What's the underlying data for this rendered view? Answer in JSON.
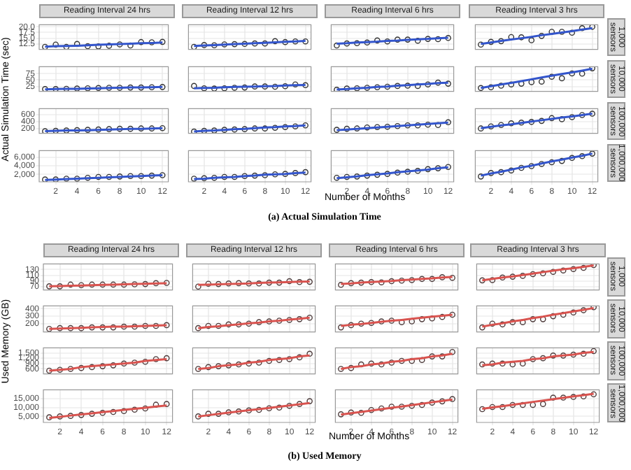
{
  "chart_data": [
    {
      "type": "scatter",
      "title": "Reading Interval 24 hrs",
      "ylabel": "Actual Simulation Time (sec)",
      "x": [
        1,
        2,
        3,
        4,
        5,
        6,
        7,
        8,
        9,
        10,
        11,
        12
      ],
      "series": [
        {
          "color": "#333333",
          "marker": "circle",
          "values": [
            11.2,
            12.2,
            11.2,
            12.5,
            11.5,
            11.4,
            11.7,
            12.3,
            11.8,
            13.3,
            13.2,
            13.4
          ]
        },
        {
          "type": "line",
          "marker": "none",
          "color": "#3355cc",
          "values": [
            11.3,
            11.5,
            11.6,
            11.7,
            11.9,
            12.1,
            12.3,
            12.4,
            12.6,
            12.8,
            12.9,
            13.1
          ]
        }
      ],
      "xlim": [
        0.45,
        12.55
      ],
      "xticks": [
        2,
        4,
        6,
        8,
        10,
        12
      ],
      "ylim": [
        10.1,
        20.9
      ],
      "yticks": [
        {
          "value": 12.5,
          "label": "12.5"
        },
        {
          "value": 15,
          "label": "15.0"
        },
        {
          "value": 17.5,
          "label": "17.5"
        },
        {
          "value": 20,
          "label": "20.0"
        }
      ],
      "tick_labels": "y",
      "grid": true
    },
    {
      "type": "scatter",
      "title": "Reading Interval 12 hrs",
      "x": [
        1,
        2,
        3,
        4,
        5,
        6,
        7,
        8,
        9,
        10,
        11,
        12
      ],
      "series": [
        {
          "color": "#333333",
          "marker": "circle",
          "values": [
            11.2,
            12.0,
            11.9,
            12.3,
            12.4,
            12.5,
            12.7,
            12.7,
            13.7,
            13.3,
            13.6,
            13.6
          ]
        },
        {
          "type": "line",
          "marker": "none",
          "color": "#3355cc",
          "values": [
            11.6,
            11.8,
            12.0,
            12.2,
            12.4,
            12.6,
            12.8,
            13.0,
            13.2,
            13.4,
            13.6,
            13.8
          ]
        }
      ],
      "xlim": [
        0.45,
        12.55
      ],
      "xticks": [
        2,
        4,
        6,
        8,
        10,
        12
      ],
      "ylim": [
        10.1,
        20.9
      ],
      "yticks": [
        12.5,
        15,
        17.5,
        20
      ],
      "tick_labels": false,
      "grid": true
    },
    {
      "type": "scatter",
      "title": "Reading Interval 6 hrs",
      "x": [
        1,
        2,
        3,
        4,
        5,
        6,
        7,
        8,
        9,
        10,
        11,
        12
      ],
      "series": [
        {
          "color": "#333333",
          "marker": "circle",
          "values": [
            11.8,
            12.7,
            12.8,
            13.1,
            14.0,
            13.6,
            14.4,
            14.4,
            13.9,
            14.7,
            14.6,
            15.1
          ]
        },
        {
          "type": "line",
          "marker": "none",
          "color": "#3355cc",
          "values": [
            12.6,
            12.8,
            13.1,
            13.3,
            13.5,
            13.8,
            14.0,
            14.3,
            14.5,
            14.7,
            15.0,
            15.2
          ]
        }
      ],
      "xlim": [
        0.45,
        12.55
      ],
      "xticks": [
        2,
        4,
        6,
        8,
        10,
        12
      ],
      "ylim": [
        10.1,
        20.9
      ],
      "yticks": [
        12.5,
        15,
        17.5,
        20
      ],
      "tick_labels": false,
      "grid": true
    },
    {
      "type": "scatter",
      "title": "Reading Interval 3 hrs",
      "y2label": "1,000 sensors",
      "x": [
        1,
        2,
        3,
        4,
        5,
        6,
        7,
        8,
        9,
        10,
        11,
        12
      ],
      "series": [
        {
          "color": "#333333",
          "marker": "circle",
          "values": [
            12.2,
            13.4,
            13.7,
            15.5,
            15.4,
            14.1,
            16.0,
            17.8,
            17.8,
            17.4,
            19.4,
            20.0
          ]
        },
        {
          "type": "line",
          "marker": "none",
          "color": "#3355cc",
          "values": [
            12.5,
            13.1,
            13.8,
            14.4,
            15.0,
            15.6,
            16.3,
            16.9,
            17.5,
            18.1,
            18.8,
            19.4
          ]
        }
      ],
      "xlim": [
        0.45,
        12.55
      ],
      "xticks": [
        2,
        4,
        6,
        8,
        10,
        12
      ],
      "ylim": [
        10.1,
        20.9
      ],
      "yticks": [
        12.5,
        15,
        17.5,
        20
      ],
      "tick_labels": false,
      "grid": true
    },
    {
      "type": "scatter",
      "x": [
        1,
        2,
        3,
        4,
        5,
        6,
        7,
        8,
        9,
        10,
        11,
        12
      ],
      "series": [
        {
          "color": "#333333",
          "marker": "circle",
          "values": [
            15,
            15,
            16,
            17,
            18,
            19,
            20,
            20,
            21,
            21,
            22,
            23
          ]
        },
        {
          "type": "line",
          "marker": "none",
          "color": "#3355cc",
          "values": [
            14,
            15,
            16,
            16,
            17,
            18,
            19,
            20,
            21,
            21,
            22,
            23
          ]
        }
      ],
      "xlim": [
        0.45,
        12.55
      ],
      "xticks": [
        2,
        4,
        6,
        8,
        10,
        12
      ],
      "ylim": [
        6,
        102
      ],
      "yticks": [
        25,
        50,
        75
      ],
      "tick_labels": "y",
      "grid": true
    },
    {
      "type": "scatter",
      "x": [
        1,
        2,
        3,
        4,
        5,
        6,
        7,
        8,
        9,
        10,
        11,
        12
      ],
      "series": [
        {
          "color": "#333333",
          "marker": "circle",
          "values": [
            27,
            18,
            17,
            18,
            20,
            21,
            25,
            25,
            24,
            26,
            33,
            30
          ]
        },
        {
          "type": "line",
          "marker": "none",
          "color": "#3355cc",
          "values": [
            18,
            19,
            20,
            22,
            23,
            24,
            25,
            26,
            27,
            29,
            30,
            31
          ]
        }
      ],
      "xlim": [
        0.45,
        12.55
      ],
      "xticks": [
        2,
        4,
        6,
        8,
        10,
        12
      ],
      "ylim": [
        6,
        102
      ],
      "yticks": [
        25,
        50,
        75
      ],
      "tick_labels": false,
      "grid": true
    },
    {
      "type": "scatter",
      "x": [
        1,
        2,
        3,
        4,
        5,
        6,
        7,
        8,
        9,
        10,
        11,
        12
      ],
      "series": [
        {
          "color": "#333333",
          "marker": "circle",
          "values": [
            12,
            17,
            18,
            20,
            22,
            24,
            27,
            28,
            27,
            33,
            40,
            36
          ]
        },
        {
          "type": "line",
          "marker": "none",
          "color": "#3355cc",
          "values": [
            13,
            15,
            18,
            20,
            23,
            25,
            28,
            30,
            33,
            35,
            38,
            40
          ]
        }
      ],
      "xlim": [
        0.45,
        12.55
      ],
      "xticks": [
        2,
        4,
        6,
        8,
        10,
        12
      ],
      "ylim": [
        6,
        102
      ],
      "yticks": [
        25,
        50,
        75
      ],
      "tick_labels": false,
      "grid": true
    },
    {
      "type": "scatter",
      "y2label": "10,000 sensors",
      "x": [
        1,
        2,
        3,
        4,
        5,
        6,
        7,
        8,
        9,
        10,
        11,
        12
      ],
      "series": [
        {
          "color": "#333333",
          "marker": "circle",
          "values": [
            19,
            22,
            28,
            33,
            36,
            42,
            44,
            63,
            57,
            76,
            75,
            96
          ]
        },
        {
          "type": "line",
          "marker": "none",
          "color": "#3355cc",
          "values": [
            19,
            26,
            33,
            39,
            46,
            53,
            60,
            67,
            74,
            80,
            87,
            94
          ]
        }
      ],
      "xlim": [
        0.45,
        12.55
      ],
      "xticks": [
        2,
        4,
        6,
        8,
        10,
        12
      ],
      "ylim": [
        6,
        102
      ],
      "yticks": [
        25,
        50,
        75
      ],
      "tick_labels": false,
      "grid": true
    },
    {
      "type": "scatter",
      "x": [
        1,
        2,
        3,
        4,
        5,
        6,
        7,
        8,
        9,
        10,
        11,
        12
      ],
      "series": [
        {
          "color": "#333333",
          "marker": "circle",
          "values": [
            120,
            130,
            140,
            150,
            160,
            170,
            180,
            190,
            190,
            200,
            200,
            210
          ]
        },
        {
          "type": "line",
          "marker": "none",
          "color": "#3355cc",
          "values": [
            120,
            130,
            140,
            140,
            150,
            160,
            170,
            180,
            190,
            190,
            200,
            210
          ]
        }
      ],
      "xlim": [
        0.45,
        12.55
      ],
      "xticks": [
        2,
        4,
        6,
        8,
        10,
        12
      ],
      "ylim": [
        59,
        775
      ],
      "yticks": [
        200,
        400,
        600
      ],
      "tick_labels": "y",
      "grid": true
    },
    {
      "type": "scatter",
      "x": [
        1,
        2,
        3,
        4,
        5,
        6,
        7,
        8,
        9,
        10,
        11,
        12
      ],
      "series": [
        {
          "color": "#333333",
          "marker": "circle",
          "values": [
            110,
            130,
            140,
            160,
            170,
            180,
            200,
            200,
            220,
            240,
            260,
            290
          ]
        },
        {
          "type": "line",
          "marker": "none",
          "color": "#3355cc",
          "values": [
            110,
            130,
            140,
            160,
            180,
            190,
            210,
            230,
            240,
            260,
            270,
            290
          ]
        }
      ],
      "xlim": [
        0.45,
        12.55
      ],
      "xticks": [
        2,
        4,
        6,
        8,
        10,
        12
      ],
      "ylim": [
        59,
        775
      ],
      "yticks": [
        200,
        400,
        600
      ],
      "tick_labels": false,
      "grid": true
    },
    {
      "type": "scatter",
      "x": [
        1,
        2,
        3,
        4,
        5,
        6,
        7,
        8,
        9,
        10,
        11,
        12
      ],
      "series": [
        {
          "color": "#333333",
          "marker": "circle",
          "values": [
            160,
            190,
            200,
            230,
            240,
            250,
            270,
            290,
            290,
            310,
            300,
            380
          ]
        },
        {
          "type": "line",
          "marker": "none",
          "color": "#3355cc",
          "values": [
            150,
            170,
            190,
            210,
            230,
            250,
            270,
            290,
            310,
            330,
            350,
            370
          ]
        }
      ],
      "xlim": [
        0.45,
        12.55
      ],
      "xticks": [
        2,
        4,
        6,
        8,
        10,
        12
      ],
      "ylim": [
        59,
        775
      ],
      "yticks": [
        200,
        400,
        600
      ],
      "tick_labels": false,
      "grid": true
    },
    {
      "type": "scatter",
      "y2label": "100,000 sensors",
      "x": [
        1,
        2,
        3,
        4,
        5,
        6,
        7,
        8,
        9,
        10,
        11,
        12
      ],
      "series": [
        {
          "color": "#333333",
          "marker": "circle",
          "values": [
            200,
            260,
            300,
            350,
            370,
            390,
            420,
            500,
            470,
            530,
            590,
            630
          ]
        },
        {
          "type": "line",
          "marker": "none",
          "color": "#3355cc",
          "values": [
            210,
            250,
            290,
            320,
            360,
            400,
            440,
            480,
            520,
            550,
            590,
            630
          ]
        }
      ],
      "xlim": [
        0.45,
        12.55
      ],
      "xticks": [
        2,
        4,
        6,
        8,
        10,
        12
      ],
      "ylim": [
        59,
        775
      ],
      "yticks": [
        200,
        400,
        600
      ],
      "tick_labels": false,
      "grid": true
    },
    {
      "type": "scatter",
      "annotations": [
        "(a) Actual Simulation Time"
      ],
      "x": [
        1,
        2,
        3,
        4,
        5,
        6,
        7,
        8,
        9,
        10,
        11,
        12
      ],
      "series": [
        {
          "color": "#333333",
          "marker": "circle",
          "values": [
            800,
            800,
            1000,
            1000,
            1200,
            1400,
            1400,
            1500,
            1600,
            1600,
            1700,
            1800
          ]
        },
        {
          "type": "line",
          "marker": "none",
          "color": "#3355cc",
          "values": [
            700,
            800,
            900,
            1000,
            1100,
            1200,
            1300,
            1400,
            1500,
            1600,
            1700,
            1800
          ]
        }
      ],
      "xlim": [
        0.45,
        12.55
      ],
      "xticks": [
        2,
        4,
        6,
        8,
        10,
        12
      ],
      "ylim": [
        260,
        7480
      ],
      "yticks": [
        {
          "value": 2000,
          "label": "2,000"
        },
        {
          "value": 4000,
          "label": "4,000"
        },
        {
          "value": 6000,
          "label": "6,000"
        }
      ],
      "grid": true
    },
    {
      "type": "scatter",
      "x": [
        1,
        2,
        3,
        4,
        5,
        6,
        7,
        8,
        9,
        10,
        11,
        12
      ],
      "series": [
        {
          "color": "#333333",
          "marker": "circle",
          "values": [
            1000,
            1100,
            1200,
            1400,
            1400,
            1600,
            1700,
            1800,
            2000,
            2100,
            2300,
            2500
          ]
        },
        {
          "type": "line",
          "marker": "none",
          "color": "#3355cc",
          "values": [
            900,
            1000,
            1200,
            1300,
            1400,
            1600,
            1700,
            1900,
            2000,
            2100,
            2300,
            2400
          ]
        }
      ],
      "xlim": [
        0.45,
        12.55
      ],
      "xticks": [
        2,
        4,
        6,
        8,
        10,
        12
      ],
      "ylim": [
        260,
        7480
      ],
      "yticks": [
        2000,
        4000,
        6000
      ],
      "tick_labels": "x",
      "grid": true
    },
    {
      "type": "scatter",
      "xlabel": "Number of Months",
      "x": [
        1,
        2,
        3,
        4,
        5,
        6,
        7,
        8,
        9,
        10,
        11,
        12
      ],
      "series": [
        {
          "color": "#333333",
          "marker": "circle",
          "values": [
            1200,
            1400,
            1500,
            1700,
            1900,
            2100,
            2400,
            2600,
            2800,
            3200,
            3400,
            3700
          ]
        },
        {
          "type": "line",
          "marker": "none",
          "color": "#3355cc",
          "values": [
            1100,
            1300,
            1500,
            1800,
            2000,
            2200,
            2500,
            2700,
            2900,
            3100,
            3400,
            3600
          ]
        }
      ],
      "xlim": [
        0.45,
        12.55
      ],
      "xticks": [
        2,
        4,
        6,
        8,
        10,
        12
      ],
      "ylim": [
        260,
        7480
      ],
      "yticks": [
        2000,
        4000,
        6000
      ],
      "tick_labels": "x",
      "grid": true
    },
    {
      "type": "scatter",
      "y2label": "1,000,000 sensors",
      "x": [
        1,
        2,
        3,
        4,
        5,
        6,
        7,
        8,
        9,
        10,
        11,
        12
      ],
      "series": [
        {
          "color": "#333333",
          "marker": "circle",
          "values": [
            1500,
            2300,
            2500,
            2900,
            3500,
            3900,
            4400,
            4800,
            5100,
            5800,
            6200,
            6800
          ]
        },
        {
          "type": "line",
          "marker": "none",
          "color": "#3355cc",
          "values": [
            1700,
            2200,
            2600,
            3100,
            3600,
            4000,
            4500,
            5000,
            5400,
            5900,
            6300,
            6800
          ]
        }
      ],
      "xlim": [
        0.45,
        12.55
      ],
      "xticks": [
        2,
        4,
        6,
        8,
        10,
        12
      ],
      "ylim": [
        260,
        7480
      ],
      "yticks": [
        2000,
        4000,
        6000
      ],
      "tick_labels": "x",
      "grid": true
    },
    {
      "type": "scatter",
      "title": "Reading Interval 24 hrs",
      "ylabel": "Used Memory (GB)",
      "x": [
        1,
        2,
        3,
        4,
        5,
        6,
        7,
        8,
        9,
        10,
        11,
        12
      ],
      "series": [
        {
          "color": "#4d3b3b",
          "marker": "circle",
          "values": [
            71,
            71,
            77,
            75,
            77,
            77,
            77,
            77,
            78,
            79,
            82,
            83
          ]
        },
        {
          "type": "line",
          "marker": "none",
          "color": "#d9534f",
          "values": [
            71,
            72,
            73,
            74,
            75,
            76,
            77,
            78,
            79,
            80,
            81,
            82
          ]
        }
      ],
      "xlim": [
        0.45,
        12.55
      ],
      "xticks": [
        2,
        4,
        6,
        8,
        10,
        12
      ],
      "ylim": [
        58,
        150
      ],
      "yticks": [
        70,
        90,
        110,
        130
      ],
      "tick_labels": "y",
      "grid": true
    },
    {
      "type": "scatter",
      "title": "Reading Interval 12 hrs",
      "x": [
        1,
        2,
        3,
        4,
        5,
        6,
        7,
        8,
        9,
        10,
        11,
        12
      ],
      "series": [
        {
          "color": "#4d3b3b",
          "marker": "circle",
          "values": [
            70,
            80,
            79,
            81,
            82,
            81,
            81,
            84,
            84,
            89,
            86,
            87
          ]
        },
        {
          "type": "line",
          "marker": "none",
          "color": "#d9534f",
          "values": [
            76,
            77,
            78,
            79,
            80,
            81,
            83,
            84,
            85,
            86,
            87,
            88
          ]
        }
      ],
      "xlim": [
        0.45,
        12.55
      ],
      "xticks": [
        2,
        4,
        6,
        8,
        10,
        12
      ],
      "ylim": [
        58,
        150
      ],
      "yticks": [
        70,
        90,
        110,
        130
      ],
      "tick_labels": false,
      "grid": true
    },
    {
      "type": "scatter",
      "title": "Reading Interval 6 hrs",
      "x": [
        1,
        2,
        3,
        4,
        5,
        6,
        7,
        8,
        9,
        10,
        11,
        12
      ],
      "series": [
        {
          "color": "#4d3b3b",
          "marker": "circle",
          "values": [
            76,
            82,
            84,
            86,
            85,
            89,
            91,
            93,
            97,
            97,
            103,
            101
          ]
        },
        {
          "type": "line",
          "marker": "none",
          "color": "#d9534f",
          "values": [
            79,
            81,
            84,
            86,
            88,
            90,
            93,
            95,
            97,
            99,
            102,
            104
          ]
        }
      ],
      "xlim": [
        0.45,
        12.55
      ],
      "xticks": [
        2,
        4,
        6,
        8,
        10,
        12
      ],
      "ylim": [
        58,
        150
      ],
      "yticks": [
        70,
        90,
        110,
        130
      ],
      "tick_labels": false,
      "grid": true
    },
    {
      "type": "scatter",
      "title": "Reading Interval 3 hrs",
      "y2label": "1,000 sensors",
      "x": [
        1,
        2,
        3,
        4,
        5,
        6,
        7,
        8,
        9,
        10,
        11,
        12
      ],
      "series": [
        {
          "color": "#4d3b3b",
          "marker": "circle",
          "values": [
            92,
            93,
            102,
            105,
            108,
            114,
            117,
            122,
            127,
            132,
            136,
            146
          ]
        },
        {
          "type": "line",
          "marker": "none",
          "color": "#d9534f",
          "values": [
            92,
            97,
            102,
            106,
            111,
            116,
            121,
            126,
            131,
            135,
            140,
            145
          ]
        }
      ],
      "xlim": [
        0.45,
        12.55
      ],
      "xticks": [
        2,
        4,
        6,
        8,
        10,
        12
      ],
      "ylim": [
        58,
        150
      ],
      "yticks": [
        70,
        90,
        110,
        130
      ],
      "tick_labels": false,
      "grid": true
    },
    {
      "type": "scatter",
      "x": [
        1,
        2,
        3,
        4,
        5,
        6,
        7,
        8,
        9,
        10,
        11,
        12
      ],
      "series": [
        {
          "color": "#4d3b3b",
          "marker": "circle",
          "values": [
            130,
            140,
            140,
            140,
            150,
            150,
            150,
            160,
            160,
            170,
            170,
            180
          ]
        },
        {
          "type": "line",
          "marker": "none",
          "color": "#d9534f",
          "values": [
            130,
            135,
            140,
            145,
            150,
            155,
            160,
            160,
            165,
            170,
            175,
            180
          ]
        }
      ],
      "xlim": [
        0.45,
        12.55
      ],
      "xticks": [
        2,
        4,
        6,
        8,
        10,
        12
      ],
      "ylim": [
        89,
        438
      ],
      "yticks": [
        200,
        300,
        400
      ],
      "tick_labels": "y",
      "grid": true
    },
    {
      "type": "scatter",
      "x": [
        1,
        2,
        3,
        4,
        5,
        6,
        7,
        8,
        9,
        10,
        11,
        12
      ],
      "series": [
        {
          "color": "#4d3b3b",
          "marker": "circle",
          "values": [
            140,
            170,
            170,
            190,
            190,
            200,
            220,
            230,
            240,
            250,
            260,
            280
          ]
        },
        {
          "type": "line",
          "marker": "none",
          "color": "#d9534f",
          "values": [
            140,
            155,
            165,
            180,
            190,
            205,
            215,
            230,
            240,
            255,
            265,
            280
          ]
        }
      ],
      "xlim": [
        0.45,
        12.55
      ],
      "xticks": [
        2,
        4,
        6,
        8,
        10,
        12
      ],
      "ylim": [
        89,
        438
      ],
      "yticks": [
        200,
        300,
        400
      ],
      "tick_labels": false,
      "grid": true
    },
    {
      "type": "scatter",
      "x": [
        1,
        2,
        3,
        4,
        5,
        6,
        7,
        8,
        9,
        10,
        11,
        12
      ],
      "series": [
        {
          "color": "#4d3b3b",
          "marker": "circle",
          "values": [
            150,
            180,
            200,
            210,
            230,
            240,
            220,
            230,
            260,
            270,
            290,
            320
          ]
        },
        {
          "type": "line",
          "marker": "none",
          "color": "#d9534f",
          "values": [
            170,
            185,
            195,
            210,
            225,
            240,
            250,
            265,
            280,
            295,
            305,
            320
          ]
        }
      ],
      "xlim": [
        0.45,
        12.55
      ],
      "xticks": [
        2,
        4,
        6,
        8,
        10,
        12
      ],
      "ylim": [
        89,
        438
      ],
      "yticks": [
        200,
        300,
        400
      ],
      "tick_labels": false,
      "grid": true
    },
    {
      "type": "scatter",
      "y2label": "10,000 sensors",
      "x": [
        1,
        2,
        3,
        4,
        5,
        6,
        7,
        8,
        9,
        10,
        11,
        12
      ],
      "series": [
        {
          "color": "#4d3b3b",
          "marker": "circle",
          "values": [
            150,
            200,
            190,
            220,
            220,
            260,
            260,
            300,
            320,
            350,
            380,
            420
          ]
        },
        {
          "type": "line",
          "marker": "none",
          "color": "#d9534f",
          "values": [
            160,
            185,
            205,
            230,
            250,
            275,
            295,
            320,
            340,
            365,
            385,
            410
          ]
        }
      ],
      "xlim": [
        0.45,
        12.55
      ],
      "xticks": [
        2,
        4,
        6,
        8,
        10,
        12
      ],
      "ylim": [
        89,
        438
      ],
      "yticks": [
        200,
        300,
        400
      ],
      "tick_labels": false,
      "grid": true
    },
    {
      "type": "scatter",
      "x": [
        1,
        2,
        3,
        4,
        5,
        6,
        7,
        8,
        9,
        10,
        11,
        12
      ],
      "series": [
        {
          "color": "#4d3b3b",
          "marker": "circle",
          "values": [
            500,
            550,
            600,
            650,
            700,
            750,
            800,
            900,
            950,
            1000,
            1150,
            1200
          ]
        },
        {
          "type": "line",
          "marker": "none",
          "color": "#d9534f",
          "values": [
            500,
            550,
            600,
            700,
            750,
            800,
            850,
            900,
            950,
            1050,
            1100,
            1150
          ]
        }
      ],
      "xlim": [
        0.45,
        12.55
      ],
      "xticks": [
        2,
        4,
        6,
        8,
        10,
        12
      ],
      "ylim": [
        318,
        1780
      ],
      "yticks": [
        600,
        900,
        {
          "value": 1200,
          "label": "1,200"
        },
        {
          "value": 1500,
          "label": "1,500"
        }
      ],
      "tick_labels": "y",
      "grid": true
    },
    {
      "type": "scatter",
      "x": [
        1,
        2,
        3,
        4,
        5,
        6,
        7,
        8,
        9,
        10,
        11,
        12
      ],
      "series": [
        {
          "color": "#4d3b3b",
          "marker": "circle",
          "values": [
            600,
            700,
            750,
            800,
            850,
            900,
            950,
            1050,
            1100,
            1150,
            1250,
            1450
          ]
        },
        {
          "type": "line",
          "marker": "none",
          "color": "#d9534f",
          "values": [
            600,
            650,
            750,
            800,
            850,
            950,
            1000,
            1100,
            1150,
            1200,
            1300,
            1350
          ]
        }
      ],
      "xlim": [
        0.45,
        12.55
      ],
      "xticks": [
        2,
        4,
        6,
        8,
        10,
        12
      ],
      "ylim": [
        318,
        1780
      ],
      "yticks": [
        600,
        900,
        1200,
        1500
      ],
      "tick_labels": false,
      "grid": true
    },
    {
      "type": "scatter",
      "x": [
        1,
        2,
        3,
        4,
        5,
        6,
        7,
        8,
        9,
        10,
        11,
        12
      ],
      "series": [
        {
          "color": "#4d3b3b",
          "marker": "circle",
          "values": [
            600,
            650,
            850,
            900,
            850,
            950,
            1050,
            1050,
            1100,
            1300,
            1300,
            1550
          ]
        },
        {
          "type": "line",
          "marker": "none",
          "color": "#d9534f",
          "values": [
            600,
            700,
            750,
            850,
            900,
            1000,
            1050,
            1150,
            1200,
            1300,
            1350,
            1450
          ]
        }
      ],
      "xlim": [
        0.45,
        12.55
      ],
      "xticks": [
        2,
        4,
        6,
        8,
        10,
        12
      ],
      "ylim": [
        318,
        1780
      ],
      "yticks": [
        600,
        900,
        1200,
        1500
      ],
      "tick_labels": false,
      "grid": true
    },
    {
      "type": "scatter",
      "y2label": "100,000 sensors",
      "x": [
        1,
        2,
        3,
        4,
        5,
        6,
        7,
        8,
        9,
        10,
        11,
        12
      ],
      "series": [
        {
          "color": "#4d3b3b",
          "marker": "circle",
          "values": [
            850,
            900,
            900,
            850,
            900,
            1150,
            1200,
            1350,
            1350,
            1400,
            1450,
            1600
          ]
        },
        {
          "type": "line",
          "marker": "none",
          "color": "#d9534f",
          "values": [
            800,
            850,
            950,
            1000,
            1050,
            1150,
            1200,
            1300,
            1350,
            1400,
            1500,
            1550
          ]
        }
      ],
      "xlim": [
        0.45,
        12.55
      ],
      "xticks": [
        2,
        4,
        6,
        8,
        10,
        12
      ],
      "ylim": [
        318,
        1780
      ],
      "yticks": [
        600,
        900,
        1200,
        1500
      ],
      "tick_labels": false,
      "grid": true
    },
    {
      "type": "scatter",
      "annotations": [
        "(b) Used Memory"
      ],
      "x": [
        1,
        2,
        3,
        4,
        5,
        6,
        7,
        8,
        9,
        10,
        11,
        12
      ],
      "series": [
        {
          "color": "#4d3b3b",
          "marker": "circle",
          "values": [
            4500,
            5000,
            5300,
            5800,
            6500,
            7000,
            7500,
            8000,
            8800,
            9500,
            11600,
            12000
          ]
        },
        {
          "type": "line",
          "marker": "none",
          "color": "#d9534f",
          "values": [
            4200,
            4800,
            5500,
            6100,
            6700,
            7400,
            8000,
            8700,
            9300,
            9900,
            10600,
            11200
          ]
        }
      ],
      "xlim": [
        0.45,
        12.55
      ],
      "xticks": [
        2,
        4,
        6,
        8,
        10,
        12
      ],
      "ylim": [
        1600,
        20000
      ],
      "yticks": [
        {
          "value": 5000,
          "label": "5,000"
        },
        {
          "value": 10000,
          "label": "10,000"
        },
        {
          "value": 15000,
          "label": "15,000"
        }
      ],
      "grid": true
    },
    {
      "type": "scatter",
      "x": [
        1,
        2,
        3,
        4,
        5,
        6,
        7,
        8,
        9,
        10,
        11,
        12
      ],
      "series": [
        {
          "color": "#4d3b3b",
          "marker": "circle",
          "values": [
            5000,
            6500,
            6500,
            7300,
            7800,
            8400,
            8700,
            9600,
            10000,
            11000,
            12000,
            13600
          ]
        },
        {
          "type": "line",
          "marker": "none",
          "color": "#d9534f",
          "values": [
            5000,
            5700,
            6400,
            7100,
            7800,
            8500,
            9100,
            9800,
            10500,
            11200,
            11900,
            12600
          ]
        }
      ],
      "xlim": [
        0.45,
        12.55
      ],
      "xticks": [
        2,
        4,
        6,
        8,
        10,
        12
      ],
      "ylim": [
        1600,
        20000
      ],
      "yticks": [
        5000,
        10000,
        15000
      ],
      "tick_labels": "x",
      "grid": true
    },
    {
      "type": "scatter",
      "xlabel": "Number of Months",
      "x": [
        1,
        2,
        3,
        4,
        5,
        6,
        7,
        8,
        9,
        10,
        11,
        12
      ],
      "series": [
        {
          "color": "#4d3b3b",
          "marker": "circle",
          "values": [
            6200,
            7200,
            7000,
            8600,
            9500,
            10500,
            10500,
            11000,
            11500,
            12800,
            13500,
            14800
          ]
        },
        {
          "type": "line",
          "marker": "none",
          "color": "#d9534f",
          "values": [
            6000,
            6800,
            7500,
            8300,
            9100,
            9900,
            10600,
            11400,
            12200,
            13000,
            13700,
            14500
          ]
        }
      ],
      "xlim": [
        0.45,
        12.55
      ],
      "xticks": [
        2,
        4,
        6,
        8,
        10,
        12
      ],
      "ylim": [
        1600,
        20000
      ],
      "yticks": [
        5000,
        10000,
        15000
      ],
      "tick_labels": "x",
      "grid": true
    },
    {
      "type": "scatter",
      "y2label": "1,000,000 sensors",
      "x": [
        1,
        2,
        3,
        4,
        5,
        6,
        7,
        8,
        9,
        10,
        11,
        12
      ],
      "series": [
        {
          "color": "#4d3b3b",
          "marker": "circle",
          "values": [
            9100,
            10300,
            10300,
            11500,
            11500,
            11500,
            12000,
            15600,
            15600,
            16000,
            16300,
            17500
          ]
        },
        {
          "type": "line",
          "marker": "none",
          "color": "#d9534f",
          "values": [
            9300,
            10100,
            10800,
            11600,
            12400,
            13200,
            13900,
            14700,
            15500,
            16300,
            17000,
            17800
          ]
        }
      ],
      "xlim": [
        0.45,
        12.55
      ],
      "xticks": [
        2,
        4,
        6,
        8,
        10,
        12
      ],
      "ylim": [
        1600,
        20000
      ],
      "yticks": [
        5000,
        10000,
        15000
      ],
      "tick_labels": "x",
      "grid": true
    }
  ]
}
